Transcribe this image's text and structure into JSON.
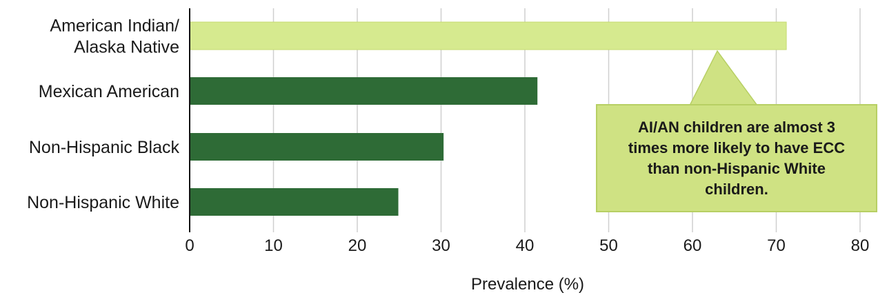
{
  "chart_data": {
    "type": "bar",
    "orientation": "horizontal",
    "categories": [
      [
        "American Indian/",
        "Alaska Native"
      ],
      [
        "Mexican American"
      ],
      [
        "Non-Hispanic Black"
      ],
      [
        "Non-Hispanic White"
      ]
    ],
    "values": [
      71.2,
      41.5,
      30.3,
      24.9
    ],
    "bar_colors": [
      "#d6ea8f",
      "#2e6b36",
      "#2e6b36",
      "#2e6b36"
    ],
    "xlabel": "Prevalence (%)",
    "xlim": [
      0,
      80
    ],
    "xticks": [
      0,
      10,
      20,
      30,
      40,
      50,
      60,
      70,
      80
    ],
    "grid": "vertical",
    "annotation": {
      "text": "AI/AN children are almost 3 times more likely to have ECC than non-Hispanic White children.",
      "fill": "#cfe283",
      "points_to_category": "American Indian/ Alaska Native"
    }
  }
}
